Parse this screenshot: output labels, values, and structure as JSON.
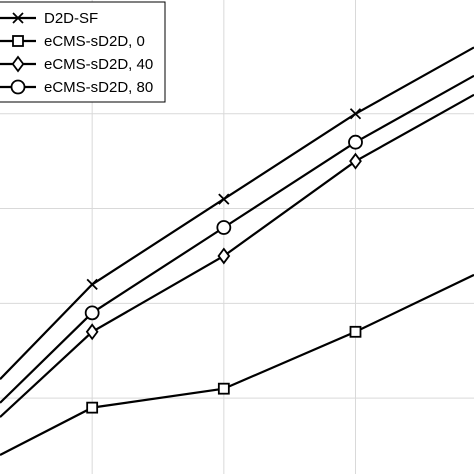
{
  "chart_data": {
    "type": "line",
    "title": "",
    "xlabel": "",
    "ylabel": "",
    "xlim": [
      0.3,
      3.9
    ],
    "ylim": [
      0.2,
      5.2
    ],
    "x": [
      0.3,
      1,
      2,
      3,
      3.9
    ],
    "xgrid": [
      1,
      2,
      3
    ],
    "ygrid": [
      1,
      2,
      3,
      4
    ],
    "grid": true,
    "legend_position": "top-left",
    "colors": {
      "line": "#000000",
      "grid": "#d9d9d9",
      "background": "#ffffff"
    },
    "series": [
      {
        "name": "D2D-SF",
        "marker": "x",
        "values": [
          1.2,
          2.2,
          3.1,
          4.0,
          4.7
        ]
      },
      {
        "name": "eCMS-sD2D, 0",
        "marker": "square",
        "values": [
          0.4,
          0.9,
          1.1,
          1.7,
          2.3
        ]
      },
      {
        "name": "eCMS-sD2D, 40",
        "marker": "diamond",
        "values": [
          0.8,
          1.7,
          2.5,
          3.5,
          4.2
        ]
      },
      {
        "name": "eCMS-sD2D, 80",
        "marker": "circle",
        "values": [
          0.95,
          1.9,
          2.8,
          3.7,
          4.4
        ]
      }
    ]
  }
}
